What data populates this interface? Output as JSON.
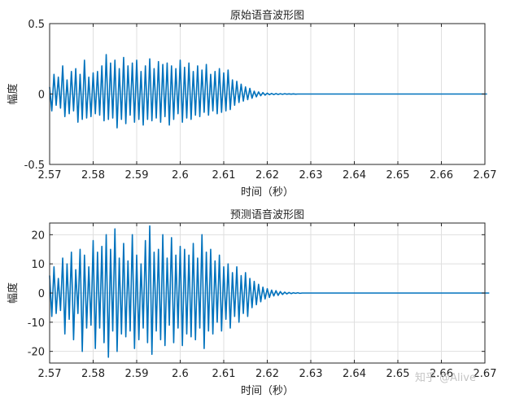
{
  "watermark": "知乎 @Alive",
  "chart_data": [
    {
      "type": "line",
      "title": "原始语音波形图",
      "xlabel": "时间（秒）",
      "ylabel": "幅度",
      "xlim": [
        2.57,
        2.67
      ],
      "ylim": [
        -0.5,
        0.5
      ],
      "xticks": [
        2.57,
        2.58,
        2.59,
        2.6,
        2.61,
        2.62,
        2.63,
        2.64,
        2.65,
        2.66,
        2.67
      ],
      "xtick_labels": [
        "2.57",
        "2.58",
        "2.59",
        "2.6",
        "2.61",
        "2.62",
        "2.63",
        "2.64",
        "2.65",
        "2.66",
        "2.67"
      ],
      "yticks": [
        -0.5,
        0,
        0.5
      ],
      "ytick_labels": [
        "-0.5",
        "0",
        "0.5"
      ],
      "grid": true,
      "line_color": "#0072bd",
      "series": [
        {
          "x_start": 2.57,
          "x_step": 0.0005,
          "values": [
            0.05,
            -0.12,
            0.14,
            -0.08,
            0.12,
            -0.1,
            0.2,
            -0.16,
            0.1,
            -0.14,
            0.16,
            -0.12,
            0.18,
            -0.2,
            0.14,
            -0.18,
            0.24,
            -0.17,
            0.12,
            -0.16,
            0.15,
            -0.14,
            0.16,
            -0.15,
            0.2,
            -0.19,
            0.28,
            -0.18,
            0.22,
            -0.17,
            0.24,
            -0.24,
            0.18,
            -0.18,
            0.26,
            -0.21,
            0.2,
            -0.15,
            0.22,
            -0.2,
            0.24,
            -0.18,
            0.16,
            -0.22,
            0.2,
            -0.18,
            0.25,
            -0.19,
            0.18,
            -0.17,
            0.23,
            -0.2,
            0.21,
            -0.16,
            0.22,
            -0.22,
            0.2,
            -0.18,
            0.18,
            -0.14,
            0.24,
            -0.2,
            0.19,
            -0.17,
            0.22,
            -0.18,
            0.16,
            -0.15,
            0.2,
            -0.16,
            0.17,
            -0.13,
            0.21,
            -0.15,
            0.14,
            -0.12,
            0.16,
            -0.14,
            0.18,
            -0.13,
            0.15,
            -0.12,
            0.17,
            -0.11,
            0.1,
            -0.08,
            0.09,
            -0.06,
            0.07,
            -0.05,
            0.05,
            -0.04,
            0.04,
            -0.03,
            0.02,
            -0.02,
            0.015,
            -0.012,
            0.01,
            -0.008,
            0.006,
            -0.005,
            0.004,
            -0.004,
            0.003,
            -0.003,
            0.002,
            -0.002,
            0.002,
            -0.001,
            0.001,
            -0.001,
            0.001,
            -0.001,
            0.0,
            0.0,
            0.0,
            0.0,
            0.0,
            0.0,
            0.0,
            0.0,
            0.0,
            0.0,
            0.0,
            0.0,
            0.0,
            0.0,
            0.0,
            0.0,
            0.0,
            0.0,
            0.0,
            0.0,
            0.0,
            0.0,
            0.0,
            0.0,
            0.0,
            0.0,
            0.0,
            0.0,
            0.0,
            0.0,
            0.0,
            0.0,
            0.0,
            0.0,
            0.0,
            0.0,
            0.0,
            0.0,
            0.0,
            0.0,
            0.0,
            0.0,
            0.0,
            0.0,
            0.0,
            0.0,
            0.0,
            0.0,
            0.0,
            0.0,
            0.0,
            0.0,
            0.0,
            0.0,
            0.0,
            0.0,
            0.0,
            0.0,
            0.0,
            0.0,
            0.0,
            0.0,
            0.0,
            0.0,
            0.0,
            0.0,
            0.0,
            0.0,
            0.0,
            0.0,
            0.0,
            0.0,
            0.0,
            0.0,
            0.0,
            0.0,
            0.0,
            0.0,
            0.0,
            0.0,
            0.0,
            0.0,
            0.0,
            0.0,
            0.0,
            0.0,
            0.0,
            0.0
          ]
        }
      ]
    },
    {
      "type": "line",
      "title": "预测语音波形图",
      "xlabel": "时间（秒）",
      "ylabel": "幅度",
      "xlim": [
        2.57,
        2.67
      ],
      "ylim": [
        -24,
        24
      ],
      "xticks": [
        2.57,
        2.58,
        2.59,
        2.6,
        2.61,
        2.62,
        2.63,
        2.64,
        2.65,
        2.66,
        2.67
      ],
      "xtick_labels": [
        "2.57",
        "2.58",
        "2.59",
        "2.6",
        "2.61",
        "2.62",
        "2.63",
        "2.64",
        "2.65",
        "2.66",
        "2.67"
      ],
      "yticks": [
        -20,
        -10,
        0,
        10,
        20
      ],
      "ytick_labels": [
        "-20",
        "-10",
        "0",
        "10",
        "20"
      ],
      "grid": true,
      "line_color": "#0072bd",
      "series": [
        {
          "x_start": 2.57,
          "x_step": 0.0005,
          "values": [
            6,
            -8,
            9,
            -7,
            5,
            -6,
            12,
            -14,
            10,
            -9,
            14,
            -16,
            8,
            -7,
            15,
            -20,
            13,
            -12,
            9,
            -11,
            18,
            -19,
            14,
            -12,
            16,
            -17,
            20,
            -22,
            15,
            -13,
            22,
            -20,
            12,
            -14,
            17,
            -15,
            11,
            -13,
            20,
            -19,
            13,
            -16,
            10,
            -12,
            18,
            -17,
            23,
            -21,
            14,
            -13,
            15,
            -16,
            20,
            -18,
            12,
            -11,
            19,
            -17,
            13,
            -12,
            16,
            -18,
            15,
            -14,
            13,
            -15,
            17,
            -16,
            12,
            -12,
            20,
            -19,
            14,
            -13,
            15,
            -14,
            11,
            -10,
            13,
            -13,
            9,
            -9,
            10,
            -12,
            7,
            -8,
            9,
            -10,
            6,
            -7,
            7,
            -8,
            5,
            -5,
            4,
            -4,
            3,
            -3,
            2,
            -2,
            1.5,
            -1.5,
            1,
            -1,
            0.8,
            -0.8,
            0.5,
            -0.5,
            0.3,
            -0.3,
            0.2,
            -0.2,
            0.1,
            -0.1,
            0.1,
            -0.1,
            0.0,
            0.0,
            0.0,
            0.0,
            0.0,
            0.0,
            0.0,
            0.0,
            0.0,
            0.0,
            0.0,
            0.0,
            0.0,
            0.0,
            0.0,
            0.0,
            0.0,
            0.0,
            0.0,
            0.0,
            0.0,
            0.0,
            0.0,
            0.0,
            0.0,
            0.0,
            0.0,
            0.0,
            0.0,
            0.0,
            0.0,
            0.0,
            0.0,
            0.0,
            0.0,
            0.0,
            0.0,
            0.0,
            0.0,
            0.0,
            0.0,
            0.0,
            0.0,
            0.0,
            0.0,
            0.0,
            0.0,
            0.0,
            0.0,
            0.0,
            0.0,
            0.0,
            0.0,
            0.0,
            0.0,
            0.0,
            0.0,
            0.0,
            0.0,
            0.0,
            0.0,
            0.0,
            0.0,
            0.0,
            0.0,
            0.0,
            0.0,
            0.0,
            0.0,
            0.0,
            0.0,
            0.0,
            0.0,
            0.0,
            0.0,
            0.0,
            0.0,
            0.0,
            0.0,
            0.0,
            0.0,
            0.0,
            0.0,
            0.0,
            0.0,
            0.0,
            0.0
          ]
        }
      ]
    }
  ]
}
